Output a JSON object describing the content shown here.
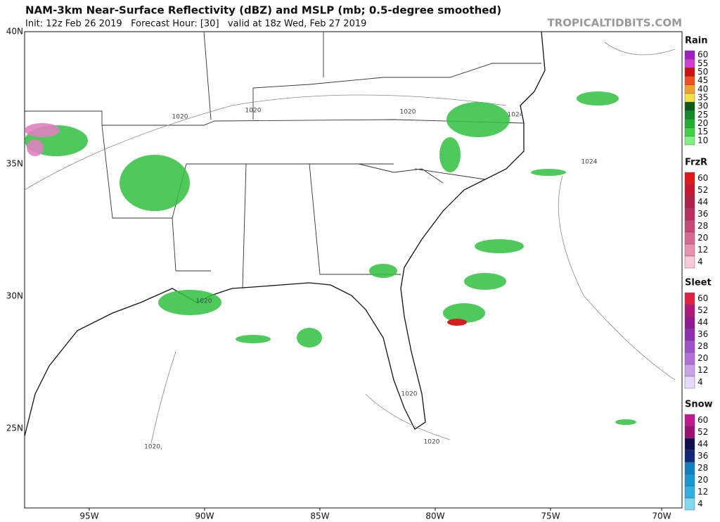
{
  "header": {
    "title": "NAM-3km Near-Surface Reflectivity (dBZ) and MSLP (mb; 0.5-degree smoothed)",
    "subtitle": "Init: 12z Feb 26 2019   Forecast Hour: [30]   valid at 18z Wed, Feb 27 2019",
    "watermark": "TROPICALTIDBITS.COM"
  },
  "map": {
    "lat_labels": [
      "40N",
      "35N",
      "30N",
      "25N"
    ],
    "lon_labels": [
      "95W",
      "90W",
      "85W",
      "80W",
      "75W",
      "70W"
    ],
    "isobar_labels": [
      "1020",
      "1020",
      "1020",
      "1024",
      "1024",
      "1020",
      "1020",
      "1020",
      "1020,"
    ]
  },
  "legends": [
    {
      "title": "Rain",
      "levels": [
        {
          "value": 60,
          "color": "#a020c0"
        },
        {
          "value": 55,
          "color": "#d040d0"
        },
        {
          "value": 50,
          "color": "#d01010"
        },
        {
          "value": 45,
          "color": "#f05020"
        },
        {
          "value": 40,
          "color": "#f0a030"
        },
        {
          "value": 35,
          "color": "#f0e040"
        },
        {
          "value": 30,
          "color": "#0a5a1a"
        },
        {
          "value": 25,
          "color": "#148a28"
        },
        {
          "value": 20,
          "color": "#20b030"
        },
        {
          "value": 15,
          "color": "#40d040"
        },
        {
          "value": 10,
          "color": "#80f080"
        }
      ]
    },
    {
      "title": "FrzR",
      "levels": [
        {
          "value": 60,
          "color": "#e01818"
        },
        {
          "value": 52,
          "color": "#c81830"
        },
        {
          "value": 44,
          "color": "#b02048"
        },
        {
          "value": 36,
          "color": "#b83060"
        },
        {
          "value": 28,
          "color": "#c84878"
        },
        {
          "value": 20,
          "color": "#d86890"
        },
        {
          "value": 12,
          "color": "#e890b0"
        },
        {
          "value": 4,
          "color": "#f8c8d8"
        }
      ]
    },
    {
      "title": "Sleet",
      "levels": [
        {
          "value": 60,
          "color": "#e02040"
        },
        {
          "value": 52,
          "color": "#b01878"
        },
        {
          "value": 44,
          "color": "#901890"
        },
        {
          "value": 36,
          "color": "#9030b0"
        },
        {
          "value": 28,
          "color": "#a050c8"
        },
        {
          "value": 20,
          "color": "#b070d8"
        },
        {
          "value": 12,
          "color": "#c8a0e8"
        },
        {
          "value": 4,
          "color": "#e8d8f8"
        }
      ]
    },
    {
      "title": "Snow",
      "levels": [
        {
          "value": 60,
          "color": "#c01890"
        },
        {
          "value": 52,
          "color": "#981070"
        },
        {
          "value": 44,
          "color": "#101050"
        },
        {
          "value": 36,
          "color": "#102878"
        },
        {
          "value": 28,
          "color": "#1080c0"
        },
        {
          "value": 20,
          "color": "#1898d0"
        },
        {
          "value": 12,
          "color": "#30b0e0"
        },
        {
          "value": 4,
          "color": "#80d8f0"
        }
      ]
    }
  ]
}
